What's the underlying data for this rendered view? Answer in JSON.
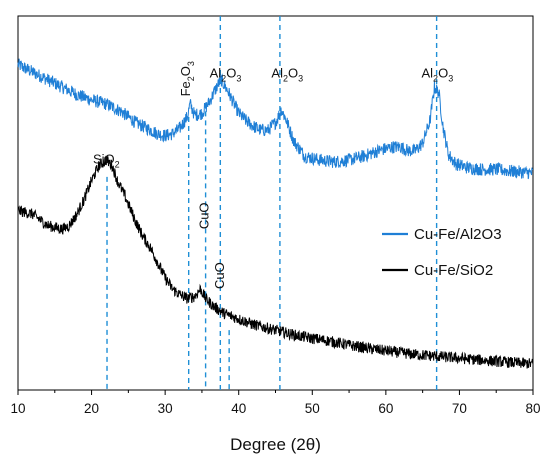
{
  "chart_data": {
    "type": "line",
    "xlabel": "Degree (2θ)",
    "ylabel": "",
    "xlim": [
      10,
      80
    ],
    "xticks": [
      10,
      20,
      30,
      40,
      50,
      60,
      70,
      80
    ],
    "ylim": [
      0,
      1
    ],
    "grid": false,
    "legend_position": "right",
    "series": [
      {
        "name": "Cu-Fe/Al2O3",
        "color": "#1f7fd6",
        "x": [
          10,
          12,
          14,
          16,
          18,
          20,
          22,
          24,
          26,
          28,
          29,
          30,
          31,
          32,
          33,
          33.4,
          34,
          35,
          36,
          37,
          37.6,
          38.5,
          40,
          41,
          42,
          43,
          44,
          45,
          45.8,
          46.5,
          47.5,
          49,
          51,
          53,
          55,
          57,
          59,
          61,
          62,
          63,
          64,
          65,
          66,
          66.6,
          67.2,
          67.8,
          68.5,
          69.5,
          71,
          73,
          75,
          77,
          80
        ],
        "y": [
          0.87,
          0.85,
          0.83,
          0.81,
          0.79,
          0.775,
          0.765,
          0.745,
          0.715,
          0.695,
          0.685,
          0.68,
          0.685,
          0.7,
          0.73,
          0.765,
          0.735,
          0.74,
          0.77,
          0.81,
          0.83,
          0.8,
          0.74,
          0.72,
          0.705,
          0.695,
          0.695,
          0.715,
          0.75,
          0.72,
          0.665,
          0.625,
          0.615,
          0.61,
          0.615,
          0.625,
          0.64,
          0.65,
          0.65,
          0.64,
          0.64,
          0.66,
          0.72,
          0.81,
          0.795,
          0.7,
          0.63,
          0.605,
          0.595,
          0.59,
          0.59,
          0.585,
          0.58
        ]
      },
      {
        "name": "Cu-Fe/SiO2",
        "color": "#000000",
        "x": [
          10,
          12,
          14,
          16,
          17,
          18,
          19,
          20,
          21,
          22,
          22.8,
          23.5,
          24.5,
          26,
          27,
          28,
          29,
          30,
          31,
          32,
          33,
          34,
          34.8,
          35.5,
          36.5,
          38,
          40,
          42,
          44,
          46,
          48,
          50,
          52,
          55,
          58,
          61,
          64,
          67,
          70,
          73,
          76,
          80
        ],
        "y": [
          0.48,
          0.47,
          0.44,
          0.43,
          0.44,
          0.47,
          0.51,
          0.56,
          0.6,
          0.615,
          0.6,
          0.56,
          0.52,
          0.45,
          0.41,
          0.38,
          0.34,
          0.3,
          0.27,
          0.255,
          0.245,
          0.25,
          0.27,
          0.245,
          0.225,
          0.205,
          0.19,
          0.175,
          0.165,
          0.155,
          0.145,
          0.138,
          0.132,
          0.12,
          0.11,
          0.102,
          0.095,
          0.09,
          0.085,
          0.08,
          0.075,
          0.07
        ]
      }
    ],
    "reference_lines": [
      {
        "x": 22.1,
        "y_top": 0.57
      },
      {
        "x": 33.2,
        "y_top": 0.73
      },
      {
        "x": 35.5,
        "y_top": 0.745
      },
      {
        "x": 37.5,
        "y_top": 1.0
      },
      {
        "x": 38.7,
        "y_top": 0.16
      },
      {
        "x": 45.6,
        "y_top": 1.0
      },
      {
        "x": 66.9,
        "y_top": 1.0
      }
    ],
    "annotations": [
      {
        "base": "SiO",
        "sub": "2",
        "x": 22.0,
        "y": 0.605,
        "rotate": false
      },
      {
        "base": "Fe",
        "sub": "2",
        "base2": "O",
        "sub2": "3",
        "x": 33.4,
        "y": 0.785,
        "rotate": true
      },
      {
        "base": "Al",
        "sub": "2",
        "base2": "O",
        "sub2": "3",
        "x": 38.2,
        "y": 0.835,
        "rotate": false
      },
      {
        "base": "Al",
        "sub": "2",
        "base2": "O",
        "sub2": "3",
        "x": 46.6,
        "y": 0.835,
        "rotate": false
      },
      {
        "base": "Al",
        "sub": "2",
        "base2": "O",
        "sub2": "3",
        "x": 67.0,
        "y": 0.835,
        "rotate": false
      },
      {
        "base": "CuO",
        "x": 35.9,
        "y": 0.43,
        "rotate": true
      },
      {
        "base": "CuO",
        "x": 38.0,
        "y": 0.27,
        "rotate": true
      }
    ]
  }
}
